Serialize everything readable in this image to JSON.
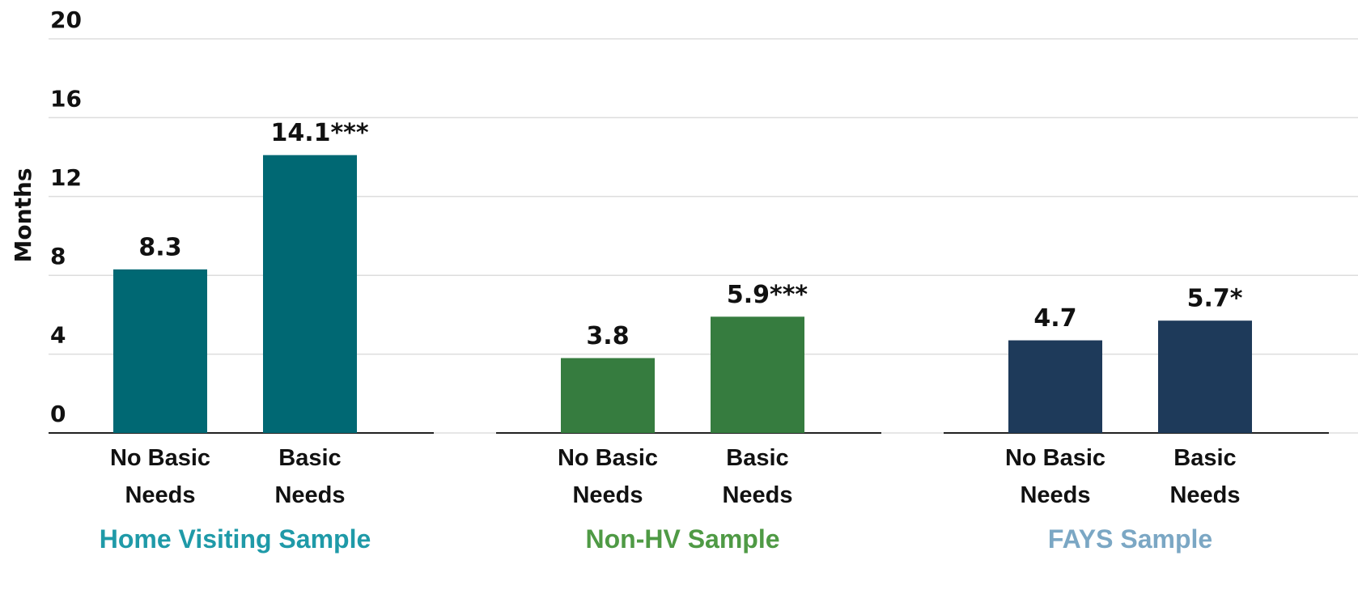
{
  "chart_data": {
    "type": "bar",
    "ylabel": "Months",
    "ylim": [
      0,
      20
    ],
    "yticks": [
      0,
      4,
      8,
      12,
      16,
      20
    ],
    "grid": true,
    "groups": [
      {
        "name": "Home Visiting Sample",
        "name_color": "#1f9aa8",
        "color": "#006873",
        "categories": [
          "No Basic Needs",
          "Basic Needs"
        ],
        "values": [
          8.3,
          14.1
        ],
        "value_labels": [
          "8.3",
          "14.1***"
        ]
      },
      {
        "name": "Non-HV Sample",
        "name_color": "#4f9a45",
        "color": "#367c3f",
        "categories": [
          "No Basic Needs",
          "Basic Needs"
        ],
        "values": [
          3.8,
          5.9
        ],
        "value_labels": [
          "3.8",
          "5.9***"
        ]
      },
      {
        "name": "FAYS Sample",
        "name_color": "#7ba7c4",
        "color": "#1e3a5a",
        "categories": [
          "No Basic Needs",
          "Basic Needs"
        ],
        "values": [
          4.7,
          5.7
        ],
        "value_labels": [
          "4.7",
          "5.7*"
        ]
      }
    ]
  }
}
